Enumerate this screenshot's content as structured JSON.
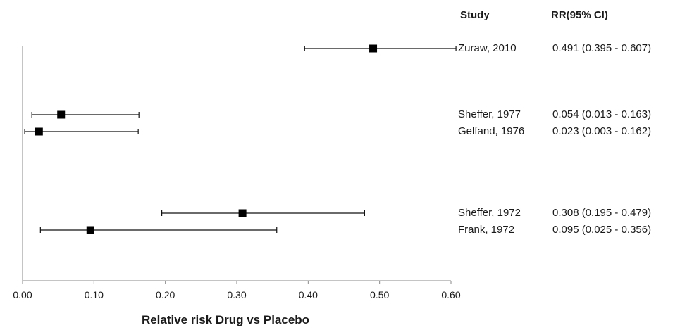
{
  "chart_data": {
    "type": "forest",
    "xlabel": "Relative risk Drug vs Placebo",
    "xlim": [
      0,
      0.6
    ],
    "xticks": [
      "0.00",
      "0.10",
      "0.20",
      "0.30",
      "0.40",
      "0.50",
      "0.60"
    ],
    "xtick_values": [
      0,
      0.1,
      0.2,
      0.3,
      0.4,
      0.5,
      0.6
    ],
    "column_headers": {
      "study": "Study",
      "rr": "RR(95% CI)"
    },
    "studies": [
      {
        "name": "Zuraw, 2010",
        "rr": 0.491,
        "lo": 0.395,
        "hi": 0.607,
        "label": "0.491 (0.395 - 0.607)"
      },
      {
        "name": "Sheffer, 1977",
        "rr": 0.054,
        "lo": 0.013,
        "hi": 0.163,
        "label": "0.054 (0.013 - 0.163)"
      },
      {
        "name": "Gelfand, 1976",
        "rr": 0.023,
        "lo": 0.003,
        "hi": 0.162,
        "label": "0.023 (0.003 - 0.162)"
      },
      {
        "name": "Sheffer, 1972",
        "rr": 0.308,
        "lo": 0.195,
        "hi": 0.479,
        "label": "0.308 (0.195 - 0.479)"
      },
      {
        "name": "Frank, 1972",
        "rr": 0.095,
        "lo": 0.025,
        "hi": 0.356,
        "label": "0.095 (0.025 - 0.356)"
      }
    ],
    "grid": false,
    "legend": "none"
  }
}
